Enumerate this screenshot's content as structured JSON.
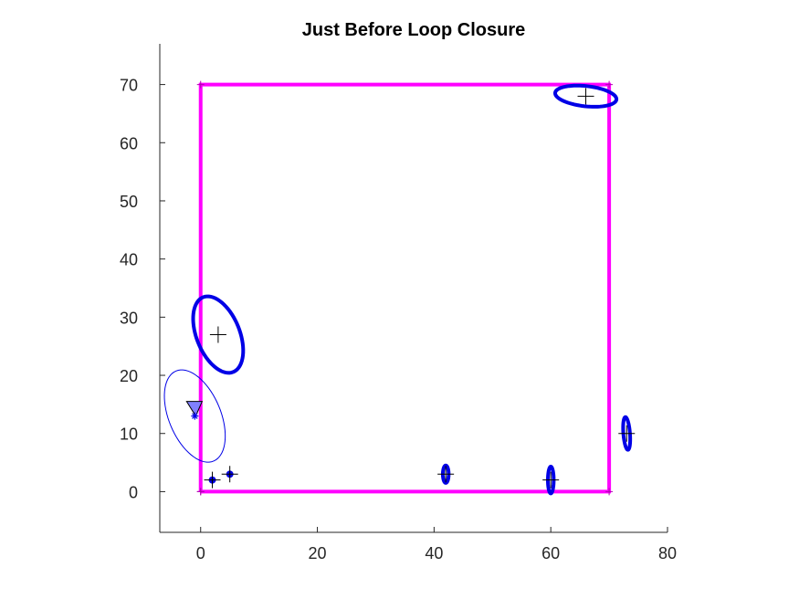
{
  "chart_data": {
    "type": "scatter",
    "title": "Just Before Loop Closure",
    "xlabel": "",
    "ylabel": "",
    "xlim": [
      -7,
      80
    ],
    "ylim": [
      -7,
      77
    ],
    "xticks": [
      0,
      20,
      40,
      60,
      80
    ],
    "yticks": [
      0,
      10,
      20,
      30,
      40,
      50,
      60,
      70
    ],
    "grid": false,
    "colors": {
      "trajectory": "#ff00ff",
      "ellipse": "#0000e6",
      "marker": "#000000",
      "robot_fill": "#8080ff"
    },
    "trajectory": {
      "x": [
        0,
        0,
        70,
        70,
        0
      ],
      "y": [
        0,
        70,
        70,
        0,
        0
      ]
    },
    "landmarks": [
      {
        "x": 2,
        "y": 2,
        "cov": [
          0.09,
          0.09,
          0
        ]
      },
      {
        "x": 5,
        "y": 3,
        "cov": [
          0.09,
          0.09,
          0
        ]
      },
      {
        "x": 42,
        "y": 3,
        "cov": [
          0.25,
          2.25,
          0
        ]
      },
      {
        "x": 60,
        "y": 2,
        "cov": [
          0.25,
          5.3,
          0
        ]
      },
      {
        "x": 73,
        "y": 10,
        "cov": [
          0.37,
          7.9,
          -0.6
        ]
      },
      {
        "x": 66,
        "y": 68,
        "cov": [
          27.6,
          3.32,
          -2.7
        ]
      },
      {
        "x": 3,
        "y": 27,
        "cov": [
          18.4,
          43.3,
          -11.8
        ]
      }
    ],
    "robot": {
      "x": -1,
      "y": 13,
      "cov": [
        27.2,
        62.9,
        -17.9
      ]
    }
  }
}
